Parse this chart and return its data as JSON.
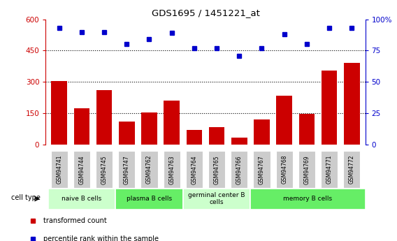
{
  "title": "GDS1695 / 1451221_at",
  "samples": [
    "GSM94741",
    "GSM94744",
    "GSM94745",
    "GSM94747",
    "GSM94762",
    "GSM94763",
    "GSM94764",
    "GSM94765",
    "GSM94766",
    "GSM94767",
    "GSM94768",
    "GSM94769",
    "GSM94771",
    "GSM94772"
  ],
  "transformed_count": [
    305,
    175,
    260,
    110,
    155,
    210,
    70,
    85,
    35,
    120,
    235,
    148,
    355,
    390
  ],
  "percentile_rank": [
    93,
    90,
    90,
    80,
    84,
    89,
    77,
    77,
    71,
    77,
    88,
    80,
    93,
    93
  ],
  "bar_color": "#cc0000",
  "dot_color": "#0000cc",
  "ylim_left": [
    0,
    600
  ],
  "ylim_right": [
    0,
    100
  ],
  "yticks_left": [
    0,
    150,
    300,
    450,
    600
  ],
  "yticks_right": [
    0,
    25,
    50,
    75,
    100
  ],
  "ytick_labels_right": [
    "0",
    "25",
    "50",
    "75",
    "100%"
  ],
  "grid_lines": [
    150,
    300,
    450
  ],
  "cell_groups": [
    {
      "label": "naive B cells",
      "start": 0,
      "end": 3,
      "color": "#ccffcc"
    },
    {
      "label": "plasma B cells",
      "start": 3,
      "end": 6,
      "color": "#66ee66"
    },
    {
      "label": "germinal center B\ncells",
      "start": 6,
      "end": 9,
      "color": "#ccffcc"
    },
    {
      "label": "memory B cells",
      "start": 9,
      "end": 14,
      "color": "#66ee66"
    }
  ],
  "legend_items": [
    {
      "label": "transformed count",
      "color": "#cc0000"
    },
    {
      "label": "percentile rank within the sample",
      "color": "#0000cc"
    }
  ],
  "cell_type_label": "cell type",
  "tick_bg_color": "#cccccc",
  "bar_width": 0.7
}
